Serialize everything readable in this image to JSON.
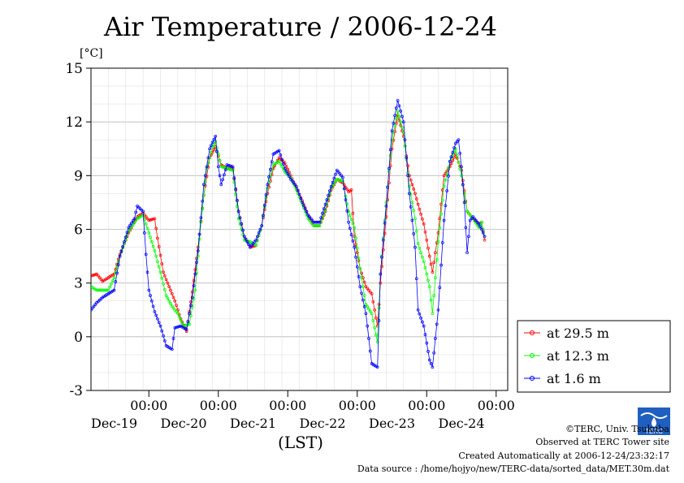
{
  "page": {
    "footer": {
      "copyright": "©TERC, Univ. Tsukuba",
      "observed": "Observed at TERC Tower site",
      "created": "Created Automatically at 2006-12-24/23:32:17",
      "source": "Data source : /home/hojyo/new/TERC-data/sorted_data/MET.30m.dat"
    },
    "logo_text": "TERC"
  },
  "chart_data": {
    "type": "line",
    "title": "Air Temperature / 2006-12-24",
    "ylabel": "[°C]",
    "xlabel": "(LST)",
    "ylim": [
      -3,
      15
    ],
    "yticks": [
      -3,
      0,
      3,
      6,
      9,
      12,
      15
    ],
    "xlim_hours": [
      0,
      144
    ],
    "day_start_label": "00:00",
    "days": [
      "Dec-19",
      "Dec-20",
      "Dec-21",
      "Dec-22",
      "Dec-23",
      "Dec-24"
    ],
    "grid": true,
    "legend_position": "right",
    "series": [
      {
        "name": "at 29.5 m",
        "color": "#ff0000",
        "keypoints": [
          [
            0,
            3.4
          ],
          [
            2,
            3.5
          ],
          [
            4,
            3.1
          ],
          [
            6,
            3.3
          ],
          [
            8,
            3.5
          ],
          [
            10,
            4.6
          ],
          [
            13,
            5.8
          ],
          [
            16,
            6.7
          ],
          [
            18,
            6.9
          ],
          [
            20,
            6.5
          ],
          [
            22,
            6.6
          ],
          [
            23,
            5.5
          ],
          [
            25,
            3.6
          ],
          [
            27,
            2.8
          ],
          [
            29,
            2.0
          ],
          [
            31,
            1.0
          ],
          [
            33,
            0.3
          ],
          [
            35,
            2.5
          ],
          [
            37,
            5.0
          ],
          [
            39,
            7.9
          ],
          [
            41,
            10.0
          ],
          [
            43,
            10.6
          ],
          [
            45,
            9.6
          ],
          [
            47,
            9.4
          ],
          [
            49,
            9.4
          ],
          [
            51,
            7.0
          ],
          [
            53,
            5.6
          ],
          [
            55,
            5.0
          ],
          [
            57,
            5.1
          ],
          [
            59,
            6.2
          ],
          [
            61,
            8.0
          ],
          [
            63,
            9.4
          ],
          [
            65,
            10.0
          ],
          [
            67,
            9.7
          ],
          [
            69,
            9.0
          ],
          [
            71,
            8.3
          ],
          [
            73,
            7.6
          ],
          [
            75,
            6.8
          ],
          [
            77,
            6.2
          ],
          [
            79,
            6.2
          ],
          [
            81,
            7.0
          ],
          [
            83,
            8.2
          ],
          [
            85,
            8.8
          ],
          [
            87,
            8.6
          ],
          [
            89,
            8.1
          ],
          [
            90,
            8.2
          ],
          [
            91,
            5.6
          ],
          [
            93,
            3.8
          ],
          [
            95,
            2.8
          ],
          [
            97,
            2.4
          ],
          [
            99,
            0.6
          ],
          [
            100,
            3.0
          ],
          [
            102,
            6.7
          ],
          [
            104,
            10.5
          ],
          [
            106,
            12.4
          ],
          [
            108,
            11.2
          ],
          [
            110,
            9.0
          ],
          [
            112,
            8.0
          ],
          [
            113,
            7.4
          ],
          [
            115,
            6.3
          ],
          [
            117,
            4.5
          ],
          [
            118,
            3.6
          ],
          [
            120,
            5.8
          ],
          [
            122,
            9.0
          ],
          [
            124,
            9.5
          ],
          [
            126,
            10.2
          ],
          [
            128,
            9.3
          ],
          [
            130,
            7.0
          ],
          [
            132,
            6.6
          ],
          [
            134,
            6.3
          ],
          [
            135,
            6.4
          ],
          [
            136,
            5.4
          ]
        ]
      },
      {
        "name": "at 12.3 m",
        "color": "#00ff00",
        "keypoints": [
          [
            0,
            2.8
          ],
          [
            2,
            2.6
          ],
          [
            4,
            2.6
          ],
          [
            6,
            2.6
          ],
          [
            8,
            3.3
          ],
          [
            10,
            4.5
          ],
          [
            13,
            5.9
          ],
          [
            16,
            6.6
          ],
          [
            18,
            6.8
          ],
          [
            20,
            5.8
          ],
          [
            22,
            4.8
          ],
          [
            24,
            3.6
          ],
          [
            26,
            2.3
          ],
          [
            28,
            1.7
          ],
          [
            30,
            1.3
          ],
          [
            32,
            0.6
          ],
          [
            34,
            0.7
          ],
          [
            36,
            2.6
          ],
          [
            38,
            6.4
          ],
          [
            40,
            9.4
          ],
          [
            42,
            10.6
          ],
          [
            43,
            10.9
          ],
          [
            45,
            9.5
          ],
          [
            47,
            9.4
          ],
          [
            49,
            9.3
          ],
          [
            51,
            6.6
          ],
          [
            53,
            5.4
          ],
          [
            55,
            5.3
          ],
          [
            57,
            5.1
          ],
          [
            59,
            6.2
          ],
          [
            61,
            8.3
          ],
          [
            63,
            9.6
          ],
          [
            65,
            9.8
          ],
          [
            67,
            9.2
          ],
          [
            69,
            8.9
          ],
          [
            71,
            8.2
          ],
          [
            73,
            7.4
          ],
          [
            75,
            6.6
          ],
          [
            77,
            6.2
          ],
          [
            79,
            6.2
          ],
          [
            81,
            7.1
          ],
          [
            83,
            8.3
          ],
          [
            85,
            8.8
          ],
          [
            87,
            8.7
          ],
          [
            89,
            7.0
          ],
          [
            91,
            6.1
          ],
          [
            93,
            3.8
          ],
          [
            95,
            1.8
          ],
          [
            97,
            1.3
          ],
          [
            99,
            -0.3
          ],
          [
            100,
            3.5
          ],
          [
            102,
            7.5
          ],
          [
            104,
            11.0
          ],
          [
            106,
            12.6
          ],
          [
            108,
            11.4
          ],
          [
            110,
            8.4
          ],
          [
            112,
            6.6
          ],
          [
            113,
            5.2
          ],
          [
            115,
            4.2
          ],
          [
            117,
            2.8
          ],
          [
            118,
            1.3
          ],
          [
            120,
            5.3
          ],
          [
            122,
            8.4
          ],
          [
            124,
            9.8
          ],
          [
            126,
            10.5
          ],
          [
            128,
            9.0
          ],
          [
            130,
            7.0
          ],
          [
            132,
            6.6
          ],
          [
            134,
            6.1
          ],
          [
            135,
            6.4
          ],
          [
            136,
            5.6
          ]
        ]
      },
      {
        "name": "at 1.6 m",
        "color": "#0000ff",
        "keypoints": [
          [
            0,
            1.5
          ],
          [
            2,
            1.9
          ],
          [
            4,
            2.2
          ],
          [
            6,
            2.4
          ],
          [
            8,
            2.6
          ],
          [
            10,
            4.5
          ],
          [
            13,
            6.1
          ],
          [
            15,
            6.6
          ],
          [
            16,
            7.3
          ],
          [
            18,
            7.0
          ],
          [
            19,
            4.6
          ],
          [
            20,
            2.6
          ],
          [
            22,
            1.4
          ],
          [
            24,
            0.6
          ],
          [
            26,
            -0.5
          ],
          [
            28,
            -0.7
          ],
          [
            29,
            0.5
          ],
          [
            31,
            0.6
          ],
          [
            33,
            0.4
          ],
          [
            35,
            2.2
          ],
          [
            37,
            4.8
          ],
          [
            39,
            8.5
          ],
          [
            41,
            10.5
          ],
          [
            43,
            11.2
          ],
          [
            44,
            9.5
          ],
          [
            45,
            8.5
          ],
          [
            47,
            9.6
          ],
          [
            49,
            9.5
          ],
          [
            51,
            7.0
          ],
          [
            53,
            5.6
          ],
          [
            55,
            5.0
          ],
          [
            57,
            5.4
          ],
          [
            59,
            6.2
          ],
          [
            61,
            8.5
          ],
          [
            63,
            10.2
          ],
          [
            65,
            10.4
          ],
          [
            67,
            9.4
          ],
          [
            69,
            8.8
          ],
          [
            71,
            8.4
          ],
          [
            73,
            7.5
          ],
          [
            75,
            6.8
          ],
          [
            77,
            6.4
          ],
          [
            79,
            6.4
          ],
          [
            81,
            7.4
          ],
          [
            83,
            8.4
          ],
          [
            85,
            9.3
          ],
          [
            87,
            8.9
          ],
          [
            89,
            6.4
          ],
          [
            91,
            5.0
          ],
          [
            93,
            2.8
          ],
          [
            95,
            1.3
          ],
          [
            97,
            -1.5
          ],
          [
            99,
            -1.7
          ],
          [
            100,
            3.5
          ],
          [
            102,
            7.3
          ],
          [
            104,
            11.5
          ],
          [
            106,
            13.2
          ],
          [
            108,
            12.0
          ],
          [
            110,
            8.0
          ],
          [
            112,
            5.0
          ],
          [
            113,
            1.5
          ],
          [
            115,
            0.6
          ],
          [
            117,
            -1.3
          ],
          [
            118,
            -1.7
          ],
          [
            120,
            1.5
          ],
          [
            122,
            6.5
          ],
          [
            124,
            9.8
          ],
          [
            126,
            10.8
          ],
          [
            127,
            11.0
          ],
          [
            128,
            9.5
          ],
          [
            129,
            7.5
          ],
          [
            130,
            4.7
          ],
          [
            131,
            6.5
          ],
          [
            132,
            6.7
          ],
          [
            134,
            6.3
          ],
          [
            135,
            6.0
          ],
          [
            136,
            5.6
          ]
        ]
      }
    ]
  }
}
